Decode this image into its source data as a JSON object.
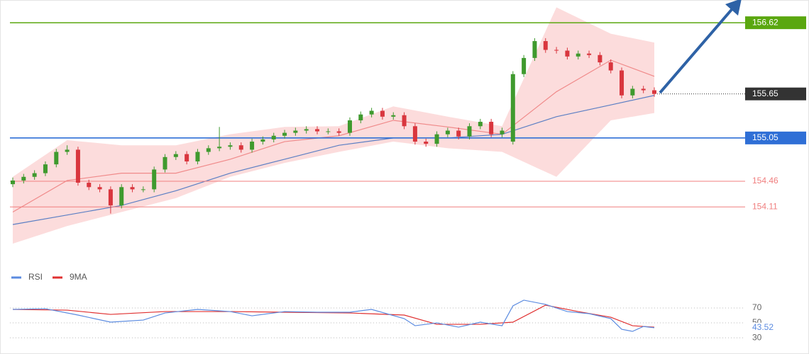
{
  "chart_data": [
    {
      "type": "candlestick",
      "xlim": [
        0,
        59
      ],
      "ylim": [
        153.36,
        156.93
      ],
      "open": [
        154.42,
        154.47,
        154.52,
        154.57,
        154.69,
        154.86,
        154.89,
        154.44,
        154.38,
        154.35,
        154.13,
        154.38,
        154.35,
        154.35,
        154.62,
        154.79,
        154.83,
        154.73,
        154.86,
        154.91,
        154.93,
        154.95,
        154.89,
        155.0,
        155.03,
        155.08,
        155.12,
        155.15,
        155.17,
        155.14,
        155.14,
        155.12,
        155.29,
        155.37,
        155.42,
        155.34,
        155.36,
        155.21,
        155.0,
        154.97,
        155.1,
        155.15,
        155.07,
        155.21,
        155.27,
        155.1,
        155.0,
        155.92,
        156.14,
        156.37,
        156.25,
        156.24,
        156.16,
        156.2,
        156.18,
        156.08,
        155.97,
        155.63,
        155.72,
        155.7
      ],
      "high": [
        154.51,
        154.56,
        154.61,
        154.73,
        154.9,
        154.95,
        154.93,
        154.48,
        154.42,
        154.39,
        154.42,
        154.42,
        154.39,
        154.66,
        154.83,
        154.87,
        154.87,
        154.9,
        154.95,
        155.2,
        154.99,
        154.99,
        155.04,
        155.07,
        155.12,
        155.16,
        155.19,
        155.21,
        155.21,
        155.18,
        155.18,
        155.33,
        155.41,
        155.46,
        155.46,
        155.4,
        155.4,
        155.25,
        155.04,
        155.14,
        155.19,
        155.19,
        155.25,
        155.31,
        155.31,
        155.19,
        155.96,
        156.18,
        156.41,
        156.41,
        156.29,
        156.28,
        156.24,
        156.24,
        156.22,
        156.12,
        156.01,
        155.76,
        155.76,
        155.74
      ],
      "low": [
        154.38,
        154.43,
        154.48,
        154.53,
        154.65,
        154.82,
        154.4,
        154.34,
        154.31,
        154.02,
        154.09,
        154.31,
        154.31,
        154.31,
        154.58,
        154.75,
        154.69,
        154.69,
        154.82,
        154.87,
        154.89,
        154.85,
        154.85,
        154.96,
        154.99,
        155.04,
        155.08,
        155.11,
        155.1,
        155.1,
        155.08,
        155.08,
        155.25,
        155.33,
        155.3,
        155.3,
        155.17,
        154.96,
        154.93,
        154.93,
        155.06,
        155.03,
        155.03,
        155.17,
        155.06,
        155.06,
        154.96,
        155.88,
        156.1,
        156.21,
        156.2,
        156.12,
        156.12,
        156.14,
        156.04,
        155.93,
        155.59,
        155.59,
        155.66,
        155.61
      ],
      "close": [
        154.47,
        154.52,
        154.57,
        154.69,
        154.86,
        154.89,
        154.44,
        154.38,
        154.35,
        154.13,
        154.38,
        154.35,
        154.35,
        154.62,
        154.79,
        154.83,
        154.73,
        154.86,
        154.91,
        154.93,
        154.95,
        154.89,
        155.0,
        155.03,
        155.08,
        155.12,
        155.15,
        155.17,
        155.14,
        155.14,
        155.12,
        155.29,
        155.37,
        155.42,
        155.34,
        155.36,
        155.21,
        155.0,
        154.97,
        155.1,
        155.15,
        155.07,
        155.21,
        155.27,
        155.1,
        155.15,
        155.92,
        156.14,
        156.37,
        156.25,
        156.24,
        156.16,
        156.2,
        156.18,
        156.08,
        155.97,
        155.63,
        155.72,
        155.7,
        155.65
      ],
      "up_color": "#3f9a2e",
      "down_color": "#d9363e",
      "bands": {
        "x": [
          0,
          5,
          10,
          15,
          20,
          25,
          30,
          35,
          40,
          45,
          50,
          55,
          59
        ],
        "upper": [
          154.52,
          155.02,
          154.95,
          154.95,
          155.1,
          155.2,
          155.21,
          155.48,
          155.34,
          155.21,
          156.83,
          156.47,
          156.35
        ],
        "lower": [
          153.61,
          153.85,
          154.04,
          154.23,
          154.52,
          154.71,
          154.86,
          155.0,
          154.91,
          154.86,
          154.52,
          155.29,
          155.39
        ],
        "color": "#fbd6d6"
      },
      "lines": [
        {
          "x": [
            0,
            5,
            10,
            15,
            20,
            25,
            30,
            35,
            40,
            45,
            50,
            55,
            59
          ],
          "values": [
            154.04,
            154.47,
            154.57,
            154.57,
            154.76,
            155.0,
            155.08,
            155.29,
            155.2,
            155.1,
            155.68,
            156.11,
            155.89
          ],
          "color": "#f08a8a"
        },
        {
          "x": [
            0,
            5,
            10,
            15,
            20,
            25,
            30,
            35,
            40,
            45,
            50,
            55,
            59
          ],
          "values": [
            153.87,
            154.0,
            154.13,
            154.33,
            154.57,
            154.76,
            154.95,
            155.05,
            155.05,
            155.1,
            155.34,
            155.5,
            155.63
          ],
          "color": "#5b7fc4"
        }
      ],
      "levels": [
        {
          "value": 156.62,
          "color": "#5aa70f",
          "style": "box"
        },
        {
          "value": 155.65,
          "color": "#333333",
          "style": "dotted"
        },
        {
          "value": 155.05,
          "color": "#2f6fd6",
          "style": "box"
        },
        {
          "value": 154.46,
          "color": "#f07f7f",
          "style": "text"
        },
        {
          "value": 154.11,
          "color": "#f07f7f",
          "style": "text"
        }
      ]
    },
    {
      "type": "line",
      "xlim": [
        0,
        59
      ],
      "ylim": [
        13,
        89
      ],
      "yticks": [
        30,
        50,
        70
      ],
      "series": [
        {
          "name": "RSI",
          "color": "#5b8be0",
          "x": [
            0,
            3,
            6,
            9,
            12,
            14,
            17,
            20,
            22,
            25,
            28,
            31,
            33,
            36,
            37,
            39,
            41,
            43,
            45,
            46,
            47,
            49,
            51,
            53,
            55,
            56,
            57,
            58,
            59
          ],
          "values": [
            68.1,
            69.0,
            60.5,
            51.0,
            53.8,
            63.3,
            68.1,
            65.2,
            59.5,
            65.2,
            64.3,
            64.3,
            68.1,
            55.7,
            46.2,
            50.0,
            44.3,
            51.0,
            46.2,
            72.9,
            80.5,
            74.8,
            65.2,
            62.4,
            55.7,
            41.4,
            38.6,
            45.2,
            43.52
          ]
        },
        {
          "name": "9MA",
          "color": "#e03030",
          "x": [
            0,
            5,
            9,
            14,
            20,
            25,
            31,
            36,
            39,
            43,
            46,
            49,
            52,
            55,
            57,
            59
          ],
          "values": [
            68.1,
            67.1,
            61.4,
            65.2,
            65.2,
            64.3,
            63.3,
            60.5,
            48.1,
            48.1,
            51.0,
            73.8,
            65.2,
            57.6,
            46.2,
            44.3
          ]
        }
      ]
    }
  ]
}
